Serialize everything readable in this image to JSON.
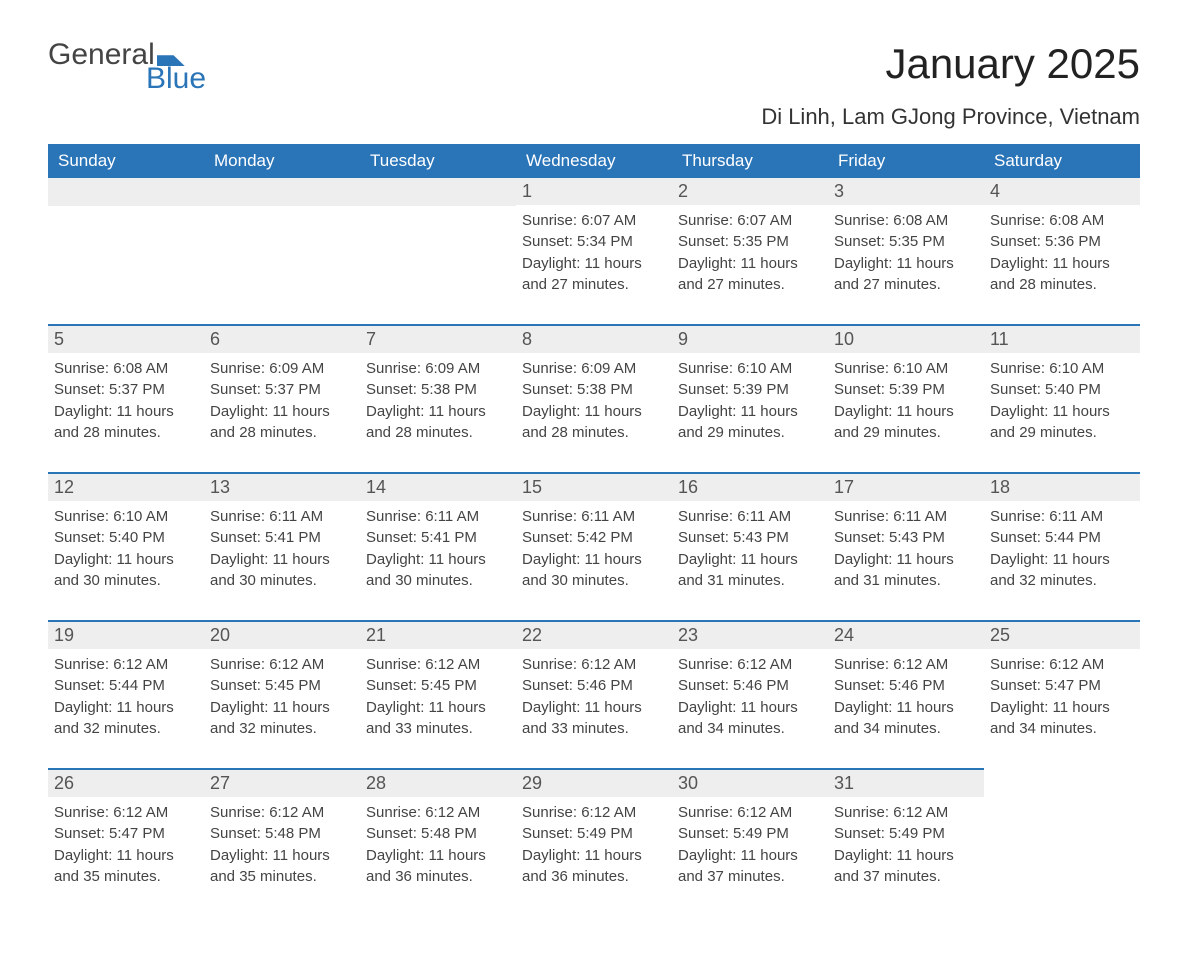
{
  "logo": {
    "word1": "General",
    "word2": "Blue"
  },
  "title": "January 2025",
  "location": "Di Linh, Lam GJong Province, Vietnam",
  "colors": {
    "brand_blue": "#2a74b8",
    "header_text": "#ffffff",
    "date_bar_bg": "#eeeeee",
    "date_bar_border": "#2a74b8",
    "body_text": "#444444",
    "background": "#ffffff"
  },
  "typography": {
    "title_fontsize": 42,
    "location_fontsize": 22,
    "dayheader_fontsize": 17,
    "date_fontsize": 18,
    "info_fontsize": 15
  },
  "day_headers": [
    "Sunday",
    "Monday",
    "Tuesday",
    "Wednesday",
    "Thursday",
    "Friday",
    "Saturday"
  ],
  "weeks": [
    [
      null,
      null,
      null,
      {
        "date": "1",
        "sunrise": "Sunrise: 6:07 AM",
        "sunset": "Sunset: 5:34 PM",
        "daylight1": "Daylight: 11 hours",
        "daylight2": "and 27 minutes."
      },
      {
        "date": "2",
        "sunrise": "Sunrise: 6:07 AM",
        "sunset": "Sunset: 5:35 PM",
        "daylight1": "Daylight: 11 hours",
        "daylight2": "and 27 minutes."
      },
      {
        "date": "3",
        "sunrise": "Sunrise: 6:08 AM",
        "sunset": "Sunset: 5:35 PM",
        "daylight1": "Daylight: 11 hours",
        "daylight2": "and 27 minutes."
      },
      {
        "date": "4",
        "sunrise": "Sunrise: 6:08 AM",
        "sunset": "Sunset: 5:36 PM",
        "daylight1": "Daylight: 11 hours",
        "daylight2": "and 28 minutes."
      }
    ],
    [
      {
        "date": "5",
        "sunrise": "Sunrise: 6:08 AM",
        "sunset": "Sunset: 5:37 PM",
        "daylight1": "Daylight: 11 hours",
        "daylight2": "and 28 minutes."
      },
      {
        "date": "6",
        "sunrise": "Sunrise: 6:09 AM",
        "sunset": "Sunset: 5:37 PM",
        "daylight1": "Daylight: 11 hours",
        "daylight2": "and 28 minutes."
      },
      {
        "date": "7",
        "sunrise": "Sunrise: 6:09 AM",
        "sunset": "Sunset: 5:38 PM",
        "daylight1": "Daylight: 11 hours",
        "daylight2": "and 28 minutes."
      },
      {
        "date": "8",
        "sunrise": "Sunrise: 6:09 AM",
        "sunset": "Sunset: 5:38 PM",
        "daylight1": "Daylight: 11 hours",
        "daylight2": "and 28 minutes."
      },
      {
        "date": "9",
        "sunrise": "Sunrise: 6:10 AM",
        "sunset": "Sunset: 5:39 PM",
        "daylight1": "Daylight: 11 hours",
        "daylight2": "and 29 minutes."
      },
      {
        "date": "10",
        "sunrise": "Sunrise: 6:10 AM",
        "sunset": "Sunset: 5:39 PM",
        "daylight1": "Daylight: 11 hours",
        "daylight2": "and 29 minutes."
      },
      {
        "date": "11",
        "sunrise": "Sunrise: 6:10 AM",
        "sunset": "Sunset: 5:40 PM",
        "daylight1": "Daylight: 11 hours",
        "daylight2": "and 29 minutes."
      }
    ],
    [
      {
        "date": "12",
        "sunrise": "Sunrise: 6:10 AM",
        "sunset": "Sunset: 5:40 PM",
        "daylight1": "Daylight: 11 hours",
        "daylight2": "and 30 minutes."
      },
      {
        "date": "13",
        "sunrise": "Sunrise: 6:11 AM",
        "sunset": "Sunset: 5:41 PM",
        "daylight1": "Daylight: 11 hours",
        "daylight2": "and 30 minutes."
      },
      {
        "date": "14",
        "sunrise": "Sunrise: 6:11 AM",
        "sunset": "Sunset: 5:41 PM",
        "daylight1": "Daylight: 11 hours",
        "daylight2": "and 30 minutes."
      },
      {
        "date": "15",
        "sunrise": "Sunrise: 6:11 AM",
        "sunset": "Sunset: 5:42 PM",
        "daylight1": "Daylight: 11 hours",
        "daylight2": "and 30 minutes."
      },
      {
        "date": "16",
        "sunrise": "Sunrise: 6:11 AM",
        "sunset": "Sunset: 5:43 PM",
        "daylight1": "Daylight: 11 hours",
        "daylight2": "and 31 minutes."
      },
      {
        "date": "17",
        "sunrise": "Sunrise: 6:11 AM",
        "sunset": "Sunset: 5:43 PM",
        "daylight1": "Daylight: 11 hours",
        "daylight2": "and 31 minutes."
      },
      {
        "date": "18",
        "sunrise": "Sunrise: 6:11 AM",
        "sunset": "Sunset: 5:44 PM",
        "daylight1": "Daylight: 11 hours",
        "daylight2": "and 32 minutes."
      }
    ],
    [
      {
        "date": "19",
        "sunrise": "Sunrise: 6:12 AM",
        "sunset": "Sunset: 5:44 PM",
        "daylight1": "Daylight: 11 hours",
        "daylight2": "and 32 minutes."
      },
      {
        "date": "20",
        "sunrise": "Sunrise: 6:12 AM",
        "sunset": "Sunset: 5:45 PM",
        "daylight1": "Daylight: 11 hours",
        "daylight2": "and 32 minutes."
      },
      {
        "date": "21",
        "sunrise": "Sunrise: 6:12 AM",
        "sunset": "Sunset: 5:45 PM",
        "daylight1": "Daylight: 11 hours",
        "daylight2": "and 33 minutes."
      },
      {
        "date": "22",
        "sunrise": "Sunrise: 6:12 AM",
        "sunset": "Sunset: 5:46 PM",
        "daylight1": "Daylight: 11 hours",
        "daylight2": "and 33 minutes."
      },
      {
        "date": "23",
        "sunrise": "Sunrise: 6:12 AM",
        "sunset": "Sunset: 5:46 PM",
        "daylight1": "Daylight: 11 hours",
        "daylight2": "and 34 minutes."
      },
      {
        "date": "24",
        "sunrise": "Sunrise: 6:12 AM",
        "sunset": "Sunset: 5:46 PM",
        "daylight1": "Daylight: 11 hours",
        "daylight2": "and 34 minutes."
      },
      {
        "date": "25",
        "sunrise": "Sunrise: 6:12 AM",
        "sunset": "Sunset: 5:47 PM",
        "daylight1": "Daylight: 11 hours",
        "daylight2": "and 34 minutes."
      }
    ],
    [
      {
        "date": "26",
        "sunrise": "Sunrise: 6:12 AM",
        "sunset": "Sunset: 5:47 PM",
        "daylight1": "Daylight: 11 hours",
        "daylight2": "and 35 minutes."
      },
      {
        "date": "27",
        "sunrise": "Sunrise: 6:12 AM",
        "sunset": "Sunset: 5:48 PM",
        "daylight1": "Daylight: 11 hours",
        "daylight2": "and 35 minutes."
      },
      {
        "date": "28",
        "sunrise": "Sunrise: 6:12 AM",
        "sunset": "Sunset: 5:48 PM",
        "daylight1": "Daylight: 11 hours",
        "daylight2": "and 36 minutes."
      },
      {
        "date": "29",
        "sunrise": "Sunrise: 6:12 AM",
        "sunset": "Sunset: 5:49 PM",
        "daylight1": "Daylight: 11 hours",
        "daylight2": "and 36 minutes."
      },
      {
        "date": "30",
        "sunrise": "Sunrise: 6:12 AM",
        "sunset": "Sunset: 5:49 PM",
        "daylight1": "Daylight: 11 hours",
        "daylight2": "and 37 minutes."
      },
      {
        "date": "31",
        "sunrise": "Sunrise: 6:12 AM",
        "sunset": "Sunset: 5:49 PM",
        "daylight1": "Daylight: 11 hours",
        "daylight2": "and 37 minutes."
      },
      null
    ]
  ]
}
